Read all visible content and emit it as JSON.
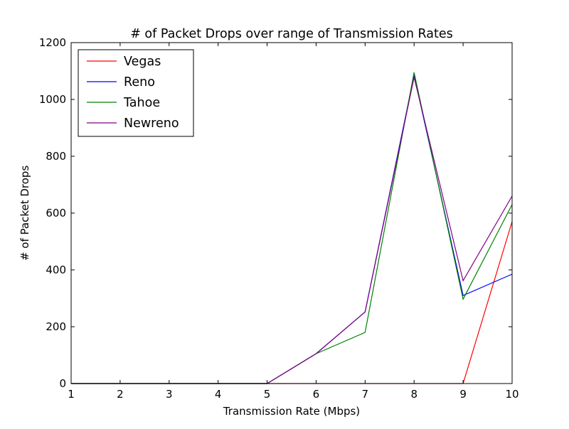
{
  "chart_data": {
    "type": "line",
    "title": "# of Packet Drops over range of Transmission Rates",
    "xlabel": "Transmission Rate (Mbps)",
    "ylabel": "# of Packet Drops",
    "x": [
      1,
      2,
      3,
      4,
      5,
      6,
      7,
      8,
      9,
      10
    ],
    "xlim": [
      1,
      10
    ],
    "ylim": [
      0,
      1200
    ],
    "xticks": [
      1,
      2,
      3,
      4,
      5,
      6,
      7,
      8,
      9,
      10
    ],
    "yticks": [
      0,
      200,
      400,
      600,
      800,
      1000,
      1200
    ],
    "grid": false,
    "legend_position": "top-left",
    "series": [
      {
        "name": "Vegas",
        "color": "#ff0000",
        "values": [
          0,
          0,
          0,
          0,
          0,
          0,
          0,
          0,
          0,
          570
        ]
      },
      {
        "name": "Reno",
        "color": "#0000ff",
        "values": [
          0,
          0,
          0,
          0,
          0,
          105,
          252,
          1085,
          310,
          385
        ]
      },
      {
        "name": "Tahoe",
        "color": "#008000",
        "values": [
          0,
          0,
          0,
          0,
          0,
          105,
          180,
          1095,
          297,
          630
        ]
      },
      {
        "name": "Newreno",
        "color": "#800080",
        "values": [
          0,
          0,
          0,
          0,
          0,
          105,
          252,
          1078,
          362,
          660
        ]
      }
    ]
  }
}
